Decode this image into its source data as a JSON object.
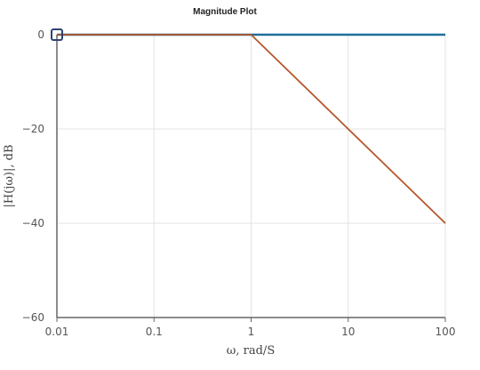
{
  "chart_data": {
    "type": "line",
    "title": "Magnitude Plot",
    "xlabel": "ω, rad/S",
    "ylabel": "|H(jω)|, dB",
    "xscale": "log",
    "xlim": [
      0.01,
      100
    ],
    "ylim": [
      -60,
      0
    ],
    "grid": true,
    "x_ticks": [
      0.01,
      0.1,
      1,
      10,
      100
    ],
    "x_tick_labels": [
      "0.01",
      "0.1",
      "1",
      "10",
      "100"
    ],
    "y_ticks": [
      0,
      -20,
      -40,
      -60
    ],
    "y_tick_labels": [
      "0",
      "−20",
      "−40",
      "−60"
    ],
    "series": [
      {
        "color": "#1f6f9a",
        "x": [
          0.01,
          100
        ],
        "y": [
          0,
          0
        ]
      },
      {
        "color": "#b5562b",
        "x": [
          0.01,
          1,
          100
        ],
        "y": [
          0,
          0,
          -40
        ]
      }
    ],
    "markers": [
      {
        "shape": "square",
        "color": "#2d4373",
        "x": 0.01,
        "y": 0
      }
    ]
  }
}
